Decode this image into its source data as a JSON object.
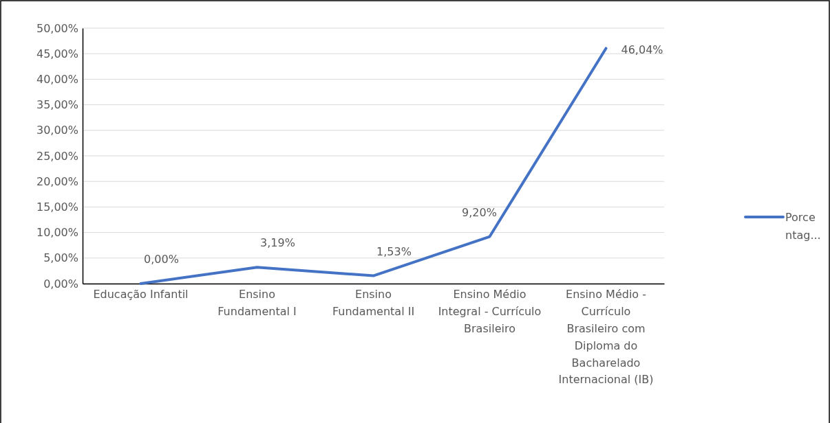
{
  "chart_data": {
    "type": "line",
    "categories": [
      "Educação Infantil",
      "Ensino Fundamental I",
      "Ensino Fundamental II",
      "Ensino Médio Integral - Currículo Brasileiro",
      "Ensino Médio - Currículo Brasileiro com Diploma do Bacharelado Internacional (IB)"
    ],
    "series": [
      {
        "name": "Porcentag...",
        "color": "#4472c4",
        "values": [
          0,
          3.19,
          1.53,
          9.2,
          46.04
        ],
        "value_labels": [
          "0,00%",
          "3,19%",
          "1,53%",
          "9,20%",
          "46,04%"
        ]
      }
    ],
    "ylim": [
      0,
      50
    ],
    "yticks": [
      {
        "value": 0,
        "label": "0,00%"
      },
      {
        "value": 5,
        "label": "5,00%"
      },
      {
        "value": 10,
        "label": "10,00%"
      },
      {
        "value": 15,
        "label": "15,00%"
      },
      {
        "value": 20,
        "label": "20,00%"
      },
      {
        "value": 25,
        "label": "25,00%"
      },
      {
        "value": 30,
        "label": "30,00%"
      },
      {
        "value": 35,
        "label": "35,00%"
      },
      {
        "value": 40,
        "label": "40,00%"
      },
      {
        "value": 45,
        "label": "45,00%"
      },
      {
        "value": 50,
        "label": "50,00%"
      }
    ],
    "grid": "y",
    "legend": "right",
    "marker": "none",
    "line_style": "solid"
  }
}
